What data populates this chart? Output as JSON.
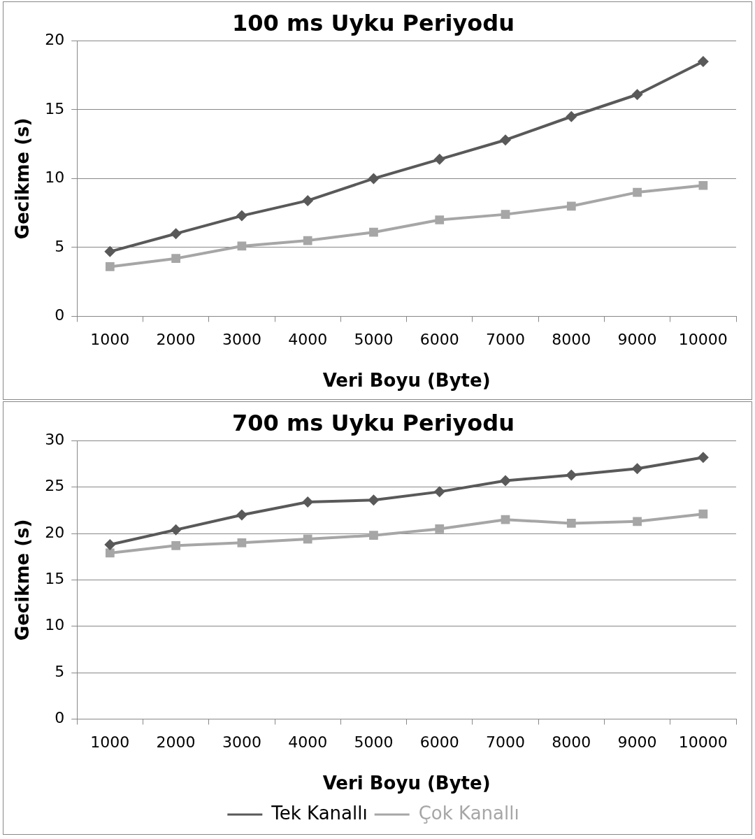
{
  "chart_data": [
    {
      "type": "line",
      "title": "100 ms Uyku Periyodu",
      "xlabel": "Veri Boyu (Byte)",
      "ylabel": "Gecikme (s)",
      "categories": [
        "1000",
        "2000",
        "3000",
        "4000",
        "5000",
        "6000",
        "7000",
        "8000",
        "9000",
        "10000"
      ],
      "series": [
        {
          "color": "#595959",
          "marker": "diamond",
          "values": [
            4.7,
            6.0,
            7.3,
            8.4,
            10.0,
            11.4,
            12.8,
            14.5,
            16.1,
            18.5
          ]
        },
        {
          "color": "#a6a6a6",
          "marker": "square",
          "values": [
            3.6,
            4.2,
            5.1,
            5.5,
            6.1,
            7.0,
            7.4,
            8.0,
            9.0,
            9.5
          ]
        }
      ],
      "ylim": [
        0,
        20
      ],
      "yticks": [
        0,
        5,
        10,
        15,
        20
      ],
      "grid": "y",
      "legend": false
    },
    {
      "type": "line",
      "title": "700 ms Uyku Periyodu",
      "xlabel": "Veri Boyu (Byte)",
      "ylabel": "Gecikme (s)",
      "categories": [
        "1000",
        "2000",
        "3000",
        "4000",
        "5000",
        "6000",
        "7000",
        "8000",
        "9000",
        "10000"
      ],
      "series": [
        {
          "name": "Tek Kanallı",
          "color": "#595959",
          "marker": "diamond",
          "values": [
            18.8,
            20.4,
            22.0,
            23.4,
            23.6,
            24.5,
            25.7,
            26.3,
            27.0,
            28.2
          ]
        },
        {
          "name": "Çok Kanallı",
          "color": "#a6a6a6",
          "marker": "square",
          "values": [
            17.9,
            18.7,
            19.0,
            19.4,
            19.8,
            20.5,
            21.5,
            21.1,
            21.3,
            22.1
          ]
        }
      ],
      "ylim": [
        0,
        30
      ],
      "yticks": [
        0,
        5,
        10,
        15,
        20,
        25,
        30
      ],
      "grid": "y",
      "legend": "bottom"
    }
  ]
}
